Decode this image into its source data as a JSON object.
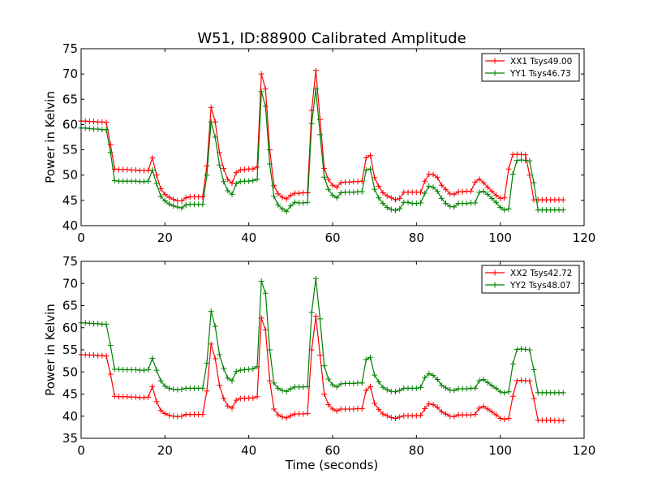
{
  "figure": {
    "title": "W51, ID:88900 Calibrated Amplitude",
    "xlabel": "Time (seconds)"
  },
  "chart_data": [
    {
      "type": "line",
      "title": "W51, ID:88900 Calibrated Amplitude",
      "xlabel": "",
      "ylabel": "Power in Kelvin",
      "xlim": [
        0,
        120
      ],
      "ylim": [
        40,
        75
      ],
      "xticks": [
        0,
        20,
        40,
        60,
        80,
        100,
        120
      ],
      "yticks": [
        40,
        45,
        50,
        55,
        60,
        65,
        70,
        75
      ],
      "grid": false,
      "legend": "top-right",
      "x": [
        0,
        1,
        2,
        3,
        4,
        5,
        6,
        7,
        8,
        9,
        10,
        11,
        12,
        13,
        14,
        15,
        16,
        17,
        18,
        19,
        20,
        21,
        22,
        23,
        24,
        25,
        26,
        27,
        28,
        29,
        30,
        31,
        32,
        33,
        34,
        35,
        36,
        37,
        38,
        39,
        40,
        41,
        42,
        43,
        44,
        45,
        46,
        47,
        48,
        49,
        50,
        51,
        52,
        53,
        54,
        55,
        56,
        57,
        58,
        59,
        60,
        61,
        62,
        63,
        64,
        65,
        66,
        67,
        68,
        69,
        70,
        71,
        72,
        73,
        74,
        75,
        76,
        77,
        78,
        79,
        80,
        81,
        82,
        83,
        84,
        85,
        86,
        87,
        88,
        89,
        90,
        91,
        92,
        93,
        94,
        95,
        96,
        97,
        98,
        99,
        100,
        101,
        102,
        103,
        104,
        105,
        106,
        107,
        108,
        109,
        110,
        111,
        112,
        113,
        114,
        115
      ],
      "series": [
        {
          "name": "XX1 Tsys49.00",
          "color": "#ff0000",
          "values": [
            60.7,
            60.7,
            60.6,
            60.6,
            60.5,
            60.5,
            60.4,
            56.0,
            51.2,
            51.1,
            51.1,
            51.1,
            51.0,
            51.0,
            50.9,
            50.9,
            50.9,
            53.4,
            50.0,
            47.3,
            46.2,
            45.6,
            45.2,
            44.9,
            44.9,
            45.5,
            45.7,
            45.7,
            45.7,
            45.7,
            51.8,
            63.4,
            60.5,
            54.5,
            51.3,
            49.1,
            48.4,
            50.5,
            51.0,
            51.1,
            51.2,
            51.2,
            51.6,
            70.0,
            67.0,
            55.0,
            47.9,
            46.3,
            45.6,
            45.3,
            46.0,
            46.4,
            46.4,
            46.5,
            46.5,
            62.8,
            70.7,
            61.0,
            51.3,
            49.1,
            48.0,
            47.6,
            48.5,
            48.6,
            48.6,
            48.7,
            48.7,
            48.8,
            53.4,
            53.9,
            49.5,
            47.8,
            46.5,
            45.9,
            45.5,
            45.1,
            45.4,
            46.6,
            46.6,
            46.6,
            46.6,
            46.6,
            48.8,
            50.2,
            50.1,
            49.5,
            48.0,
            47.2,
            46.3,
            46.2,
            46.7,
            46.7,
            46.8,
            46.8,
            48.6,
            49.2,
            48.5,
            47.6,
            46.8,
            46.0,
            45.4,
            45.5,
            51.2,
            54.1,
            54.1,
            54.1,
            54.0,
            50.0,
            45.1,
            45.1,
            45.1,
            45.1,
            45.1,
            45.1,
            45.1,
            45.1
          ]
        },
        {
          "name": "YY1 Tsys46.73",
          "color": "#008000",
          "values": [
            59.3,
            59.3,
            59.2,
            59.1,
            59.1,
            59.0,
            59.0,
            54.5,
            48.9,
            48.8,
            48.8,
            48.8,
            48.8,
            48.8,
            48.7,
            48.7,
            48.8,
            51.0,
            48.3,
            45.8,
            44.9,
            44.3,
            43.9,
            43.7,
            43.5,
            44.1,
            44.2,
            44.2,
            44.2,
            44.2,
            50.0,
            60.5,
            57.5,
            52.0,
            48.7,
            46.9,
            46.2,
            48.3,
            48.7,
            48.8,
            48.8,
            48.9,
            49.2,
            66.5,
            63.6,
            52.2,
            45.8,
            44.1,
            43.3,
            42.8,
            43.9,
            44.6,
            44.5,
            44.5,
            44.6,
            60.2,
            67.0,
            58.0,
            49.6,
            47.2,
            46.0,
            45.5,
            46.5,
            46.6,
            46.6,
            46.6,
            46.7,
            46.7,
            51.0,
            51.2,
            47.2,
            45.5,
            44.4,
            43.6,
            43.2,
            43.0,
            43.3,
            44.6,
            44.6,
            44.4,
            44.4,
            44.5,
            46.4,
            47.8,
            47.6,
            46.8,
            45.4,
            44.4,
            43.8,
            43.7,
            44.4,
            44.4,
            44.4,
            44.5,
            44.5,
            46.6,
            46.8,
            46.2,
            45.4,
            44.6,
            43.6,
            43.1,
            43.3,
            50.2,
            52.9,
            53.0,
            52.9,
            52.8,
            48.5,
            43.1,
            43.1,
            43.1,
            43.1,
            43.1,
            43.1,
            43.1
          ]
        }
      ]
    },
    {
      "type": "line",
      "title": "",
      "xlabel": "Time (seconds)",
      "ylabel": "Power in Kelvin",
      "xlim": [
        0,
        120
      ],
      "ylim": [
        35,
        75
      ],
      "xticks": [
        0,
        20,
        40,
        60,
        80,
        100,
        120
      ],
      "yticks": [
        35,
        40,
        45,
        50,
        55,
        60,
        65,
        70,
        75
      ],
      "grid": false,
      "legend": "top-right",
      "x": [
        0,
        1,
        2,
        3,
        4,
        5,
        6,
        7,
        8,
        9,
        10,
        11,
        12,
        13,
        14,
        15,
        16,
        17,
        18,
        19,
        20,
        21,
        22,
        23,
        24,
        25,
        26,
        27,
        28,
        29,
        30,
        31,
        32,
        33,
        34,
        35,
        36,
        37,
        38,
        39,
        40,
        41,
        42,
        43,
        44,
        45,
        46,
        47,
        48,
        49,
        50,
        51,
        52,
        53,
        54,
        55,
        56,
        57,
        58,
        59,
        60,
        61,
        62,
        63,
        64,
        65,
        66,
        67,
        68,
        69,
        70,
        71,
        72,
        73,
        74,
        75,
        76,
        77,
        78,
        79,
        80,
        81,
        82,
        83,
        84,
        85,
        86,
        87,
        88,
        89,
        90,
        91,
        92,
        93,
        94,
        95,
        96,
        97,
        98,
        99,
        100,
        101,
        102,
        103,
        104,
        105,
        106,
        107,
        108,
        109,
        110,
        111,
        112,
        113,
        114,
        115
      ],
      "series": [
        {
          "name": "XX2 Tsys42.72",
          "color": "#ff0000",
          "values": [
            53.9,
            53.9,
            53.8,
            53.8,
            53.7,
            53.7,
            53.6,
            49.5,
            44.5,
            44.4,
            44.4,
            44.4,
            44.3,
            44.3,
            44.2,
            44.2,
            44.3,
            46.7,
            43.3,
            41.3,
            40.6,
            40.2,
            40.0,
            39.9,
            40.0,
            40.4,
            40.4,
            40.4,
            40.4,
            40.4,
            45.7,
            56.3,
            53.0,
            47.0,
            44.0,
            42.3,
            41.8,
            43.6,
            44.0,
            44.0,
            44.1,
            44.1,
            44.4,
            62.2,
            59.5,
            48.0,
            41.6,
            40.3,
            39.8,
            39.6,
            40.1,
            40.5,
            40.5,
            40.5,
            40.6,
            55.0,
            62.6,
            53.8,
            45.0,
            42.6,
            41.6,
            41.2,
            41.6,
            41.6,
            41.6,
            41.6,
            41.7,
            41.7,
            45.8,
            46.7,
            42.9,
            41.5,
            40.5,
            40.1,
            39.7,
            39.5,
            39.8,
            40.1,
            40.1,
            40.1,
            40.1,
            40.2,
            41.7,
            42.8,
            42.6,
            42.0,
            41.0,
            40.5,
            40.0,
            39.9,
            40.3,
            40.3,
            40.3,
            40.3,
            40.4,
            41.8,
            42.2,
            41.6,
            41.0,
            40.3,
            39.5,
            39.3,
            39.5,
            44.5,
            48.0,
            48.1,
            48.0,
            48.0,
            44.0,
            39.1,
            39.1,
            39.1,
            39.1,
            39.0,
            39.0,
            39.0
          ]
        },
        {
          "name": "YY2 Tsys48.07",
          "color": "#008000",
          "values": [
            61.1,
            61.1,
            61.0,
            60.9,
            60.9,
            60.8,
            60.8,
            56.0,
            50.6,
            50.6,
            50.5,
            50.5,
            50.5,
            50.5,
            50.4,
            50.4,
            50.5,
            53.1,
            50.4,
            48.0,
            46.8,
            46.3,
            46.1,
            46.0,
            46.1,
            46.3,
            46.3,
            46.3,
            46.3,
            46.3,
            52.0,
            63.7,
            60.3,
            53.9,
            50.8,
            48.6,
            48.0,
            50.1,
            50.4,
            50.5,
            50.6,
            50.7,
            51.2,
            70.5,
            67.8,
            55.0,
            47.5,
            46.3,
            45.8,
            45.6,
            46.2,
            46.6,
            46.6,
            46.6,
            46.7,
            63.5,
            71.1,
            62.0,
            51.4,
            48.4,
            47.1,
            46.6,
            47.3,
            47.4,
            47.4,
            47.4,
            47.5,
            47.5,
            52.8,
            53.3,
            49.3,
            47.8,
            46.5,
            46.0,
            45.6,
            45.5,
            45.8,
            46.3,
            46.3,
            46.3,
            46.3,
            46.5,
            48.7,
            49.6,
            49.2,
            48.3,
            47.0,
            46.4,
            45.9,
            45.8,
            46.2,
            46.2,
            46.2,
            46.3,
            46.3,
            48.0,
            48.3,
            47.6,
            46.9,
            46.3,
            45.5,
            45.3,
            45.5,
            51.8,
            55.1,
            55.2,
            55.1,
            55.0,
            50.5,
            45.3,
            45.3,
            45.3,
            45.3,
            45.3,
            45.3,
            45.3
          ]
        }
      ]
    }
  ]
}
